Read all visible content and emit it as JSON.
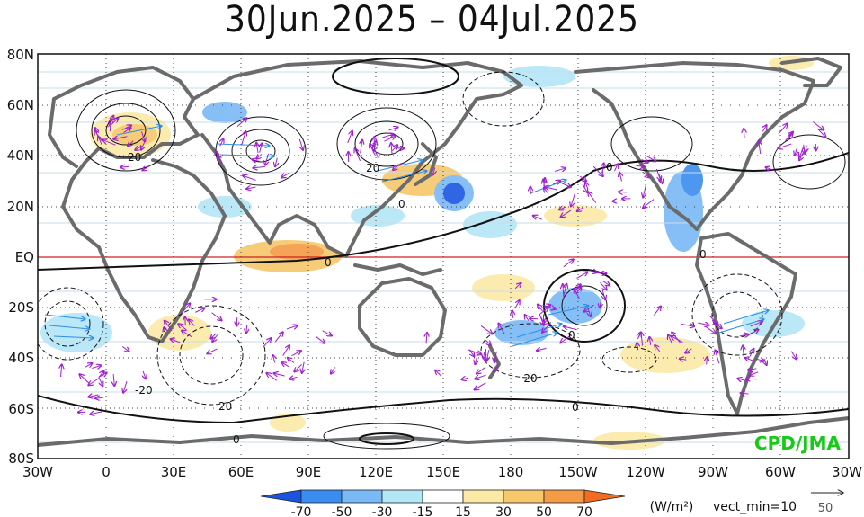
{
  "title": "30Jun.2025 – 04Jul.2025",
  "lat_labels": [
    "80N",
    "60N",
    "40N",
    "20N",
    "EQ",
    "20S",
    "40S",
    "60S",
    "80S"
  ],
  "lon_labels": [
    "30W",
    "0",
    "30E",
    "60E",
    "90E",
    "120E",
    "150E",
    "180",
    "150W",
    "120W",
    "90W",
    "60W",
    "30W"
  ],
  "contour_labels": [
    "20",
    "20",
    "0",
    "0",
    "20",
    "0",
    "0",
    "0",
    "-20",
    "-20",
    "0",
    "0"
  ],
  "watermark": "CPD/JMA",
  "colorbar": {
    "ticks": [
      "-70",
      "-50",
      "-30",
      "-15",
      "15",
      "30",
      "50",
      "70"
    ],
    "colors": [
      "#1a55e0",
      "#3b8cf0",
      "#79b9f5",
      "#b3e6f7",
      "#ffffff",
      "#fbe9a6",
      "#f7c76b",
      "#f59a45",
      "#f26b1f"
    ],
    "units": "(W/m²)",
    "vect_note": "vect_min=10",
    "ref_vector_label": "50"
  },
  "colors": {
    "coast": "#6b6b6b",
    "vector": "#a020d0",
    "vector_strong": "#2a8fe8",
    "equator": "#d02020",
    "contour": "#111111",
    "watermark": "#19c919"
  }
}
